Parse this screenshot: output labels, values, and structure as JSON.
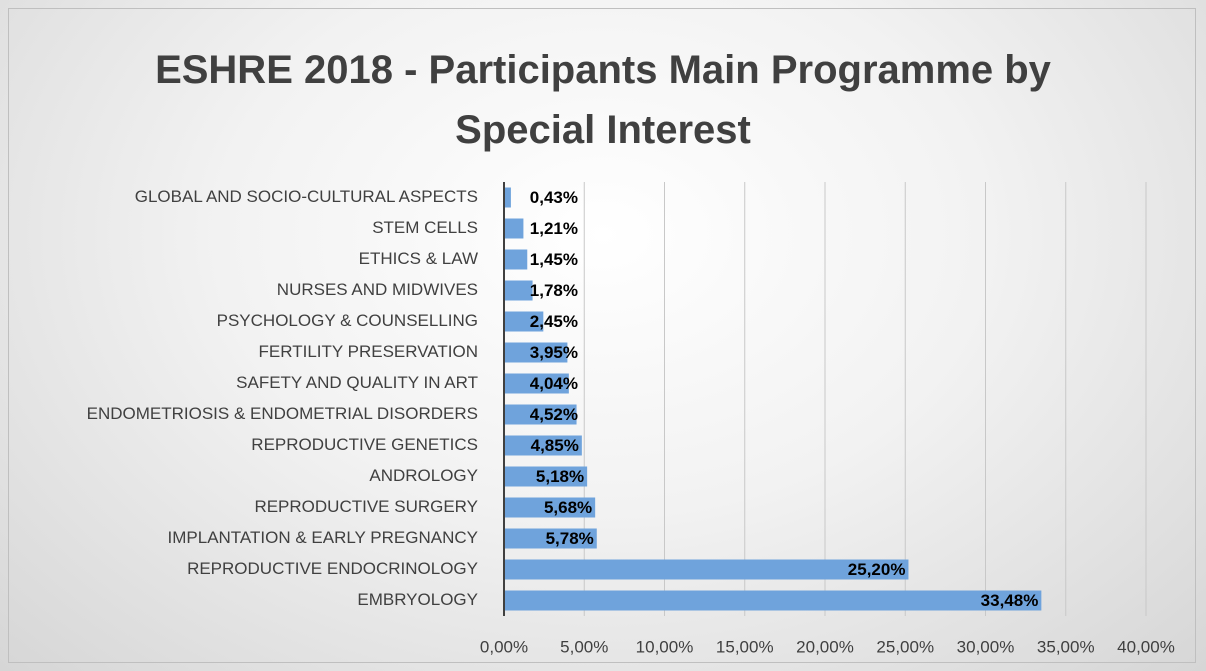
{
  "chart_data": {
    "type": "bar",
    "orientation": "horizontal",
    "title": "ESHRE 2018 - Participants Main Programme by Special Interest",
    "categories": [
      "GLOBAL AND SOCIO-CULTURAL ASPECTS",
      "STEM CELLS",
      "ETHICS & LAW",
      "NURSES AND MIDWIVES",
      "PSYCHOLOGY & COUNSELLING",
      "FERTILITY PRESERVATION",
      "SAFETY AND QUALITY IN ART",
      "ENDOMETRIOSIS & ENDOMETRIAL DISORDERS",
      "REPRODUCTIVE GENETICS",
      "ANDROLOGY",
      "REPRODUCTIVE SURGERY",
      "IMPLANTATION & EARLY PREGNANCY",
      "REPRODUCTIVE ENDOCRINOLOGY",
      "EMBRYOLOGY"
    ],
    "values": [
      0.43,
      1.21,
      1.45,
      1.78,
      2.45,
      3.95,
      4.04,
      4.52,
      4.85,
      5.18,
      5.68,
      5.78,
      25.2,
      33.48
    ],
    "value_labels": [
      "0,43%",
      "1,21%",
      "1,45%",
      "1,78%",
      "2,45%",
      "3,95%",
      "4,04%",
      "4,52%",
      "4,85%",
      "5,18%",
      "5,68%",
      "5,78%",
      "25,20%",
      "33,48%"
    ],
    "color": "#6fa3dc",
    "xlim": [
      0,
      40
    ],
    "xticks": [
      {
        "value": 0,
        "label": "0,00%"
      },
      {
        "value": 5,
        "label": "5,00%"
      },
      {
        "value": 10,
        "label": "10,00%"
      },
      {
        "value": 15,
        "label": "15,00%"
      },
      {
        "value": 20,
        "label": "20,00%"
      },
      {
        "value": 25,
        "label": "25,00%"
      },
      {
        "value": 30,
        "label": "30,00%"
      },
      {
        "value": 35,
        "label": "35,00%"
      },
      {
        "value": 40,
        "label": "40,00%"
      }
    ],
    "grid": true
  }
}
